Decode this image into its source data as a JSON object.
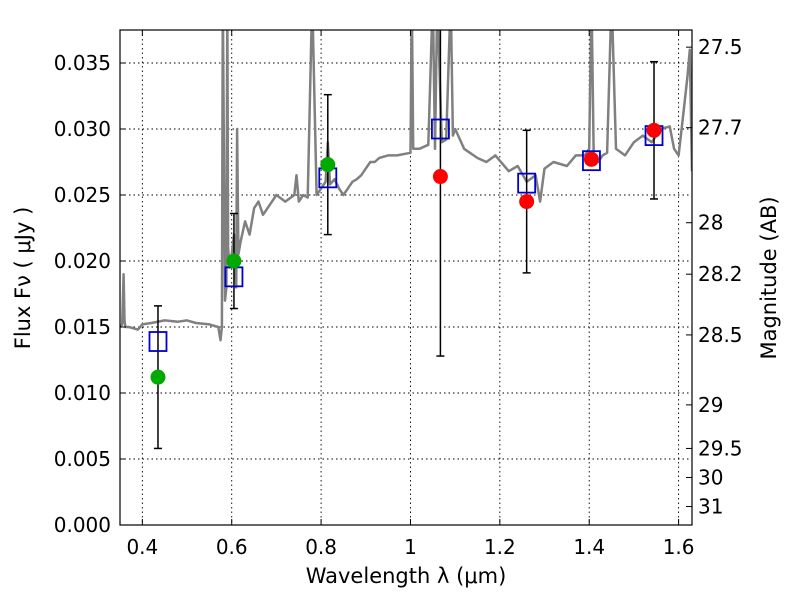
{
  "chart_data": {
    "type": "scatter",
    "title": "",
    "xlabel": "Wavelength  λ (μm)",
    "ylabel": "Flux  Fν  ( μJy )",
    "y2label": "Magnitude (AB)",
    "xlim": [
      0.35,
      1.63
    ],
    "ylim": [
      0.0,
      0.0375
    ],
    "x_ticks": [
      0.4,
      0.6,
      0.8,
      1.0,
      1.2,
      1.4,
      1.6
    ],
    "x_tick_labels": [
      "0.4",
      "0.6",
      "0.8",
      "1",
      "1.2",
      "1.4",
      "1.6"
    ],
    "y_ticks": [
      0.0,
      0.005,
      0.01,
      0.015,
      0.02,
      0.025,
      0.03,
      0.035
    ],
    "y_tick_labels": [
      "0.000",
      "0.005",
      "0.010",
      "0.015",
      "0.020",
      "0.025",
      "0.030",
      "0.035"
    ],
    "y2_ticks": [
      {
        "label": "27.5",
        "flux": 0.0362
      },
      {
        "label": "27.7",
        "flux": 0.0301
      },
      {
        "label": "28",
        "flux": 0.0229
      },
      {
        "label": "28.2",
        "flux": 0.019
      },
      {
        "label": "28.5",
        "flux": 0.0144
      },
      {
        "label": "29",
        "flux": 0.0091
      },
      {
        "label": "29.5",
        "flux": 0.0058
      },
      {
        "label": "30",
        "flux": 0.0036
      },
      {
        "label": "31",
        "flux": 0.0014
      }
    ],
    "grid": true,
    "colors": {
      "model": "#808080",
      "green": "#00aa00",
      "red": "#ff0000",
      "squares": "#0000cc",
      "errorbars": "#000000"
    },
    "series": [
      {
        "kind": "model_spectrum",
        "x": [
          0.35,
          0.355,
          0.358,
          0.36,
          0.362,
          0.37,
          0.39,
          0.4,
          0.42,
          0.45,
          0.48,
          0.5,
          0.52,
          0.55,
          0.57,
          0.575,
          0.578,
          0.58,
          0.585,
          0.588,
          0.59,
          0.592,
          0.595,
          0.6,
          0.605,
          0.61,
          0.612,
          0.615,
          0.62,
          0.63,
          0.64,
          0.65,
          0.66,
          0.67,
          0.68,
          0.7,
          0.72,
          0.74,
          0.745,
          0.75,
          0.76,
          0.77,
          0.78,
          0.79,
          0.8,
          0.81,
          0.815,
          0.82,
          0.83,
          0.84,
          0.85,
          0.86,
          0.87,
          0.88,
          0.89,
          0.9,
          0.91,
          0.92,
          0.93,
          0.95,
          0.97,
          1.0,
          1.003,
          1.006,
          1.02,
          1.04,
          1.05,
          1.055,
          1.06,
          1.07,
          1.08,
          1.09,
          1.095,
          1.1,
          1.12,
          1.15,
          1.17,
          1.19,
          1.2,
          1.22,
          1.24,
          1.26,
          1.28,
          1.29,
          1.3,
          1.32,
          1.35,
          1.37,
          1.39,
          1.4,
          1.405,
          1.41,
          1.42,
          1.43,
          1.44,
          1.45,
          1.46,
          1.48,
          1.5,
          1.52,
          1.54,
          1.56,
          1.58,
          1.59,
          1.6,
          1.61,
          1.62,
          1.625,
          1.63
        ],
        "y": [
          0.015,
          0.0152,
          0.019,
          0.0155,
          0.015,
          0.015,
          0.0148,
          0.0152,
          0.0153,
          0.0155,
          0.0154,
          0.0155,
          0.0153,
          0.0152,
          0.015,
          0.014,
          0.015,
          0.04,
          0.017,
          0.018,
          0.04,
          0.021,
          0.0195,
          0.0205,
          0.022,
          0.018,
          0.03,
          0.0205,
          0.0215,
          0.023,
          0.022,
          0.024,
          0.0245,
          0.0235,
          0.024,
          0.025,
          0.0245,
          0.025,
          0.0265,
          0.0245,
          0.025,
          0.0248,
          0.04,
          0.025,
          0.0255,
          0.026,
          0.029,
          0.0258,
          0.0262,
          0.0255,
          0.025,
          0.0255,
          0.026,
          0.0262,
          0.0265,
          0.027,
          0.0275,
          0.0275,
          0.0278,
          0.028,
          0.028,
          0.0282,
          0.04,
          0.0285,
          0.0285,
          0.0288,
          0.04,
          0.0285,
          0.04,
          0.029,
          0.0292,
          0.04,
          0.0295,
          0.03,
          0.0285,
          0.0278,
          0.0275,
          0.028,
          0.0276,
          0.0268,
          0.0272,
          0.026,
          0.0265,
          0.0245,
          0.027,
          0.0275,
          0.0272,
          0.028,
          0.028,
          0.0285,
          0.04,
          0.028,
          0.0275,
          0.028,
          0.0282,
          0.04,
          0.0285,
          0.028,
          0.029,
          0.0295,
          0.029,
          0.03,
          0.0302,
          0.0285,
          0.028,
          0.031,
          0.034,
          0.036,
          0.0268
        ]
      },
      {
        "kind": "green_points",
        "x": [
          0.435,
          0.605,
          0.815
        ],
        "y": [
          0.0112,
          0.02,
          0.0273
        ],
        "yerr": [
          0.0054,
          0.0036,
          0.0053
        ]
      },
      {
        "kind": "red_points",
        "x": [
          1.067,
          1.26,
          1.405,
          1.545
        ],
        "y": [
          0.0264,
          0.0245,
          0.0277,
          0.0299
        ],
        "yerr": [
          0.0136,
          0.0054,
          0.0,
          0.0052
        ]
      },
      {
        "kind": "open_squares",
        "x": [
          0.435,
          0.605,
          0.815,
          1.067,
          1.26,
          1.405,
          1.545
        ],
        "y": [
          0.0139,
          0.0188,
          0.0263,
          0.03,
          0.0259,
          0.0276,
          0.0295
        ]
      }
    ]
  }
}
